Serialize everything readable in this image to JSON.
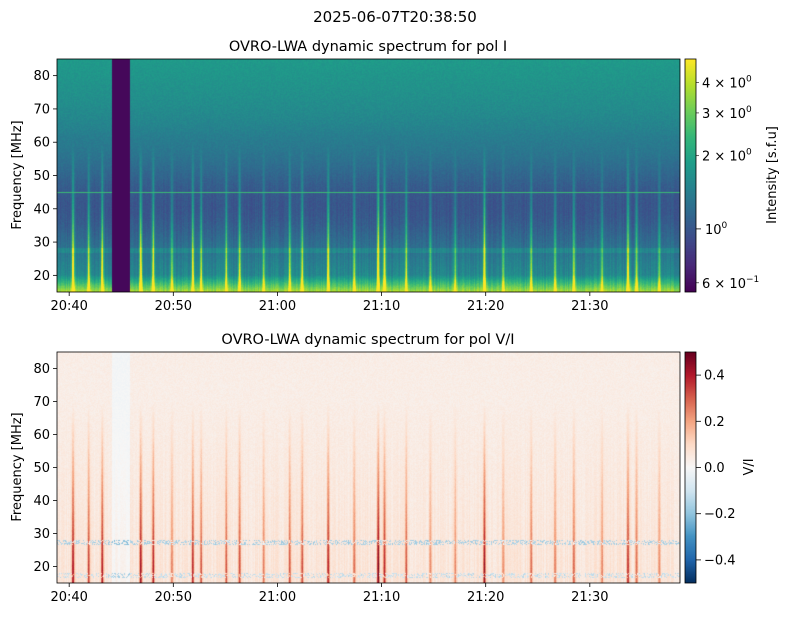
{
  "suptitle": "2025-06-07T20:38:50",
  "chart_data": [
    {
      "type": "heatmap",
      "title": "OVRO-LWA dynamic spectrum for pol I",
      "xlabel": "",
      "ylabel": "Frequency [MHz]",
      "x_range": [
        "20:38:50",
        "21:38:40"
      ],
      "xticks": [
        "20:40",
        "20:50",
        "21:00",
        "21:10",
        "21:20",
        "21:30"
      ],
      "xtick_minutes": [
        1.17,
        11.17,
        21.17,
        31.17,
        41.17,
        51.17
      ],
      "ylim": [
        15,
        85
      ],
      "yticks": [
        20,
        30,
        40,
        50,
        60,
        70,
        80
      ],
      "colormap": "viridis",
      "color_scale": "log",
      "colorbar": {
        "label": "Intensity [s.f.u]",
        "range": [
          0.55,
          5.0
        ],
        "major_ticks": [
          {
            "value": 1,
            "mantissa": "",
            "exp": "0",
            "base": "10"
          }
        ],
        "minor_ticks": [
          {
            "value": 0.6,
            "mantissa": "6 × ",
            "base": "10",
            "exp": "−1"
          },
          {
            "value": 2,
            "mantissa": "2 × ",
            "base": "10",
            "exp": "0"
          },
          {
            "value": 3,
            "mantissa": "3 × ",
            "base": "10",
            "exp": "0"
          },
          {
            "value": 4,
            "mantissa": "4 × ",
            "base": "10",
            "exp": "0"
          }
        ]
      },
      "gap_minutes": [
        5.2,
        7.0
      ],
      "horizontal_line_mhz": 45,
      "bursts": [
        {
          "t": 1.5,
          "s": 0.9
        },
        {
          "t": 3.0,
          "s": 0.7
        },
        {
          "t": 4.3,
          "s": 0.8
        },
        {
          "t": 8.0,
          "s": 0.9
        },
        {
          "t": 9.2,
          "s": 0.8
        },
        {
          "t": 11.0,
          "s": 0.5
        },
        {
          "t": 13.0,
          "s": 0.8
        },
        {
          "t": 13.8,
          "s": 0.6
        },
        {
          "t": 16.2,
          "s": 0.6
        },
        {
          "t": 17.5,
          "s": 0.7
        },
        {
          "t": 19.8,
          "s": 0.5
        },
        {
          "t": 22.3,
          "s": 0.6
        },
        {
          "t": 23.5,
          "s": 0.7
        },
        {
          "t": 26.0,
          "s": 0.8
        },
        {
          "t": 28.5,
          "s": 0.5
        },
        {
          "t": 30.8,
          "s": 1.0
        },
        {
          "t": 31.4,
          "s": 0.8
        },
        {
          "t": 33.5,
          "s": 0.6
        },
        {
          "t": 35.8,
          "s": 0.5
        },
        {
          "t": 38.2,
          "s": 0.5
        },
        {
          "t": 41.0,
          "s": 0.9
        },
        {
          "t": 42.8,
          "s": 0.5
        },
        {
          "t": 45.5,
          "s": 0.6
        },
        {
          "t": 47.8,
          "s": 0.5
        },
        {
          "t": 49.6,
          "s": 0.6
        },
        {
          "t": 52.3,
          "s": 0.5
        },
        {
          "t": 54.8,
          "s": 0.8
        },
        {
          "t": 55.6,
          "s": 0.6
        },
        {
          "t": 57.8,
          "s": 0.4
        }
      ]
    },
    {
      "type": "heatmap",
      "title": "OVRO-LWA dynamic spectrum for pol V/I",
      "xlabel": "",
      "ylabel": "Frequency [MHz]",
      "x_range": [
        "20:38:50",
        "21:38:40"
      ],
      "xticks": [
        "20:40",
        "20:50",
        "21:00",
        "21:10",
        "21:20",
        "21:30"
      ],
      "xtick_minutes": [
        1.17,
        11.17,
        21.17,
        31.17,
        41.17,
        51.17
      ],
      "ylim": [
        15,
        85
      ],
      "yticks": [
        20,
        30,
        40,
        50,
        60,
        70,
        80
      ],
      "colormap": "RdBu_r",
      "color_scale": "linear",
      "colorbar": {
        "label": "V/I",
        "range": [
          -0.5,
          0.5
        ],
        "ticks": [
          -0.4,
          -0.2,
          0.0,
          0.2,
          0.4
        ],
        "tick_labels": [
          "−0.4",
          "−0.2",
          "0.0",
          "0.2",
          "0.4"
        ]
      }
    }
  ]
}
